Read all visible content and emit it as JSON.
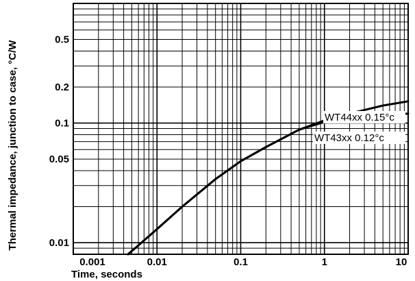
{
  "chart_data": {
    "type": "line",
    "title": "",
    "xlabel": "Time, seconds",
    "ylabel": "Thermal impedance, junction to case, °C/W",
    "x_scale": "log",
    "y_scale": "log",
    "xlim": [
      0.001,
      10
    ],
    "ylim": [
      0.008,
      1
    ],
    "grid": true,
    "x_ticks": [
      "0.001",
      "0.01",
      "0.1",
      "1",
      "10"
    ],
    "y_ticks": [
      "0.01",
      "0.05",
      "0.1",
      "0.2",
      "0.5"
    ],
    "y_tick_values": [
      0.01,
      0.05,
      0.1,
      0.2,
      0.5
    ],
    "series": [
      {
        "name": "WT44xx 0.15°c",
        "x": [
          0.0045,
          0.006,
          0.01,
          0.02,
          0.05,
          0.1,
          0.2,
          0.5,
          1,
          2,
          5,
          10
        ],
        "y": [
          0.008,
          0.0095,
          0.013,
          0.02,
          0.034,
          0.048,
          0.063,
          0.088,
          0.105,
          0.12,
          0.14,
          0.152
        ]
      },
      {
        "name": "WT43xx 0.12°c",
        "x": [
          0.0045,
          0.006,
          0.01,
          0.02,
          0.05,
          0.1,
          0.2,
          0.5,
          1,
          2,
          5,
          10
        ],
        "y": [
          0.008,
          0.0095,
          0.013,
          0.02,
          0.034,
          0.048,
          0.063,
          0.088,
          0.102,
          0.11,
          0.116,
          0.12
        ]
      }
    ]
  }
}
